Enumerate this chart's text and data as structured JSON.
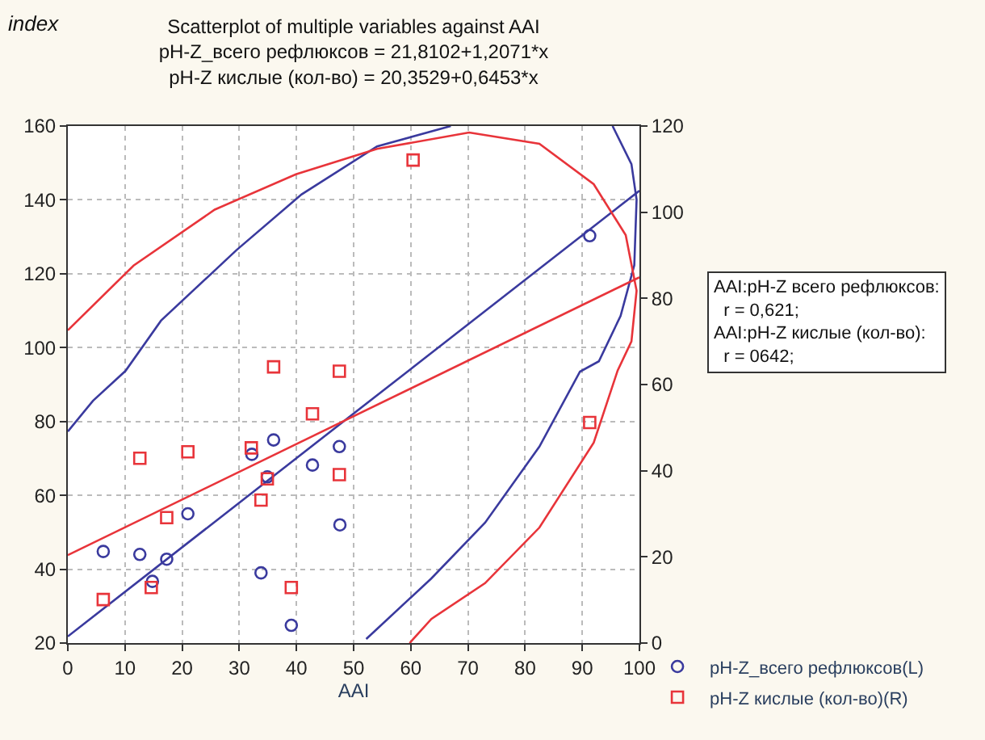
{
  "chart_data": {
    "type": "scatter",
    "title": "Scatterplot of multiple variables against AAI",
    "subtitle": "pH-Z_всего рефлюксов = 21,8102+1,2071*x\npH-Z кислые (кол-во) = 20,3529+0,6453*x",
    "xlabel": "AAI",
    "annotations": [
      "index",
      "AAI:pH-Z всего рефлюксов:\n  r = 0,621;\nAAI:pH-Z кислые (кол-во):\n  r = 0642;"
    ],
    "xlim": [
      0,
      100
    ],
    "xticks": [
      0,
      10,
      20,
      30,
      40,
      50,
      60,
      70,
      80,
      90,
      100
    ],
    "ylim": [
      20,
      160
    ],
    "yticks": [
      20,
      40,
      60,
      80,
      100,
      120,
      140,
      160
    ],
    "y2lim": [
      0,
      120
    ],
    "y2ticks": [
      0,
      20,
      40,
      60,
      80,
      100,
      120
    ],
    "grid": true,
    "legend": "bottom right",
    "series": [
      {
        "name": "pH-Z_всего рефлюксов(L)",
        "color": "#3a3a9e",
        "marker": "circle",
        "axis": "y",
        "x": [
          6.2,
          12.6,
          14.8,
          17.3,
          21,
          32.2,
          36,
          34.9,
          33.8,
          39.1,
          42.8,
          47.5,
          47.6,
          91.3
        ],
        "values": [
          44.8,
          44,
          36.7,
          42.7,
          55,
          71.1,
          75,
          65,
          39,
          24.8,
          68.2,
          73.2,
          52,
          130.3
        ]
      },
      {
        "name": "pH-Z кислые (кол-во)(R)",
        "color": "#e8343a",
        "marker": "square",
        "axis": "y2",
        "x": [
          6.2,
          12.6,
          14.6,
          17.3,
          21,
          32.1,
          34.9,
          33.8,
          39.1,
          42.8,
          47.5,
          91.3,
          36,
          47.5,
          60.4
        ],
        "values": [
          10.1,
          42.9,
          12.9,
          29.1,
          44.4,
          45.3,
          38.1,
          33.2,
          12.9,
          53.2,
          39.1,
          51.2,
          64.1,
          63.1,
          112.1
        ]
      },
      {
        "type": "line",
        "color": "#3a3a9e",
        "axis": "y",
        "x": [
          0,
          100
        ],
        "values": [
          21.8,
          142.5
        ]
      },
      {
        "type": "line",
        "color": "#e8343a",
        "axis": "y2",
        "x": [
          0,
          100
        ],
        "values": [
          20.4,
          84.9
        ]
      },
      {
        "type": "line",
        "color": "#3a3a9e",
        "axis": "y",
        "x": [
          0,
          4.4,
          10.1,
          16.3,
          29.5,
          40.9,
          54.1,
          67,
          null,
          95.3,
          98.6,
          99.5,
          99.1,
          96.7,
          92.9,
          89.6,
          82.5,
          73,
          63.6,
          52.2
        ],
        "values": [
          77.3,
          85.6,
          93.7,
          107.3,
          126.4,
          141.5,
          154.5,
          160,
          null,
          160,
          149.7,
          140.1,
          122.3,
          108.6,
          96.3,
          93.5,
          73.2,
          52.6,
          37.5,
          21.1
        ]
      },
      {
        "type": "line",
        "color": "#e8343a",
        "axis": "y2",
        "x": [
          0,
          11.5,
          25.7,
          39.9,
          54.1,
          70.2,
          82.5,
          92,
          97.6,
          99.5,
          98.6,
          96.2,
          92,
          82.5,
          73,
          63.6,
          59.8
        ],
        "values": [
          72.6,
          87.6,
          100.6,
          108.8,
          114.7,
          118.5,
          115.9,
          106.5,
          94.7,
          81.8,
          70,
          63.3,
          46.5,
          26.8,
          13.9,
          5.6,
          0
        ]
      }
    ]
  }
}
